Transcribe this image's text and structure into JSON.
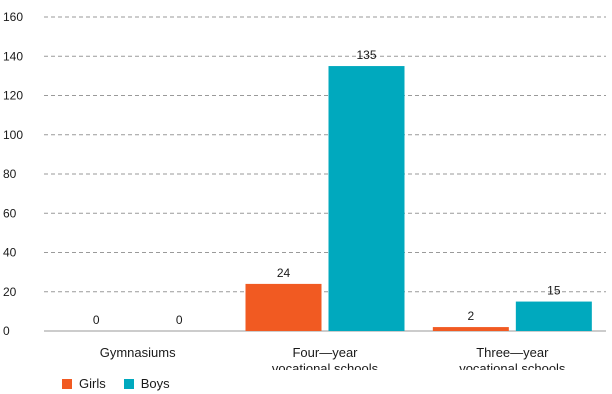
{
  "chart_data": {
    "type": "bar",
    "categories": [
      [
        "Gymnasiums"
      ],
      [
        "Four—year",
        "vocational schools"
      ],
      [
        "Three—year",
        "vocational schools"
      ]
    ],
    "series": [
      {
        "name": "Girls",
        "color": "#f15a22",
        "values": [
          0,
          24,
          2
        ]
      },
      {
        "name": "Boys",
        "color": "#00a9be",
        "values": [
          0,
          135,
          15
        ]
      }
    ],
    "ylim": [
      0,
      160
    ],
    "yticks": [
      0,
      20,
      40,
      60,
      80,
      100,
      120,
      140,
      160
    ],
    "grid": true,
    "grid_style": "dashed",
    "data_labels": true,
    "legend_position": "bottom-left",
    "title": "",
    "xlabel": "",
    "ylabel": ""
  }
}
